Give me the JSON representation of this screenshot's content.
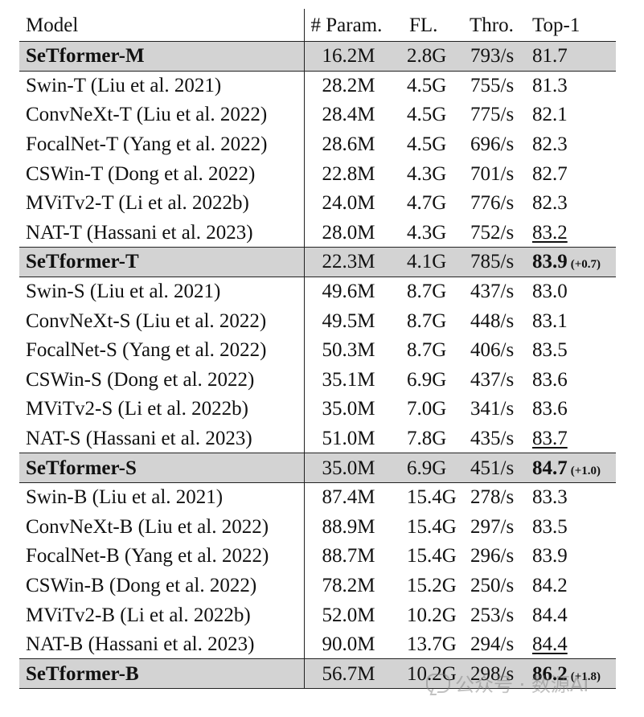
{
  "table": {
    "headers": {
      "model": "Model",
      "param": "# Param.",
      "fl": "FL.",
      "thro": "Thro.",
      "top1": "Top-1"
    },
    "rows": [
      {
        "model": "SeTformer-M",
        "param": "16.2M",
        "fl": "2.8G",
        "thro": "793/s",
        "top1": "81.7",
        "gain": "",
        "highlight": true,
        "best": false,
        "underline": false
      },
      {
        "model": "Swin-T (Liu et al. 2021)",
        "param": "28.2M",
        "fl": "4.5G",
        "thro": "755/s",
        "top1": "81.3",
        "gain": "",
        "highlight": false,
        "best": false,
        "underline": false
      },
      {
        "model": "ConvNeXt-T (Liu et al. 2022)",
        "param": "28.4M",
        "fl": "4.5G",
        "thro": "775/s",
        "top1": "82.1",
        "gain": "",
        "highlight": false,
        "best": false,
        "underline": false
      },
      {
        "model": "FocalNet-T (Yang et al. 2022)",
        "param": "28.6M",
        "fl": "4.5G",
        "thro": "696/s",
        "top1": "82.3",
        "gain": "",
        "highlight": false,
        "best": false,
        "underline": false
      },
      {
        "model": "CSWin-T (Dong et al. 2022)",
        "param": "22.8M",
        "fl": "4.3G",
        "thro": "701/s",
        "top1": "82.7",
        "gain": "",
        "highlight": false,
        "best": false,
        "underline": false
      },
      {
        "model": "MViTv2-T (Li et al. 2022b)",
        "param": "24.0M",
        "fl": "4.7G",
        "thro": "776/s",
        "top1": "82.3",
        "gain": "",
        "highlight": false,
        "best": false,
        "underline": false
      },
      {
        "model": "NAT-T (Hassani et al. 2023)",
        "param": "28.0M",
        "fl": "4.3G",
        "thro": "752/s",
        "top1": "83.2",
        "gain": "",
        "highlight": false,
        "best": false,
        "underline": true
      },
      {
        "model": "SeTformer-T",
        "param": "22.3M",
        "fl": "4.1G",
        "thro": "785/s",
        "top1": "83.9",
        "gain": "(+0.7)",
        "highlight": true,
        "best": true,
        "underline": false
      },
      {
        "model": "Swin-S (Liu et al. 2021)",
        "param": "49.6M",
        "fl": "8.7G",
        "thro": "437/s",
        "top1": "83.0",
        "gain": "",
        "highlight": false,
        "best": false,
        "underline": false
      },
      {
        "model": "ConvNeXt-S (Liu et al. 2022)",
        "param": "49.5M",
        "fl": "8.7G",
        "thro": "448/s",
        "top1": "83.1",
        "gain": "",
        "highlight": false,
        "best": false,
        "underline": false
      },
      {
        "model": "FocalNet-S (Yang et al. 2022)",
        "param": "50.3M",
        "fl": "8.7G",
        "thro": "406/s",
        "top1": "83.5",
        "gain": "",
        "highlight": false,
        "best": false,
        "underline": false
      },
      {
        "model": "CSWin-S (Dong et al. 2022)",
        "param": "35.1M",
        "fl": "6.9G",
        "thro": "437/s",
        "top1": "83.6",
        "gain": "",
        "highlight": false,
        "best": false,
        "underline": false
      },
      {
        "model": "MViTv2-S (Li et al. 2022b)",
        "param": "35.0M",
        "fl": "7.0G",
        "thro": "341/s",
        "top1": "83.6",
        "gain": "",
        "highlight": false,
        "best": false,
        "underline": false
      },
      {
        "model": "NAT-S (Hassani et al. 2023)",
        "param": "51.0M",
        "fl": "7.8G",
        "thro": "435/s",
        "top1": "83.7",
        "gain": "",
        "highlight": false,
        "best": false,
        "underline": true
      },
      {
        "model": "SeTformer-S",
        "param": "35.0M",
        "fl": "6.9G",
        "thro": "451/s",
        "top1": "84.7",
        "gain": "(+1.0)",
        "highlight": true,
        "best": true,
        "underline": false
      },
      {
        "model": "Swin-B (Liu et al. 2021)",
        "param": "87.4M",
        "fl": "15.4G",
        "thro": "278/s",
        "top1": "83.3",
        "gain": "",
        "highlight": false,
        "best": false,
        "underline": false
      },
      {
        "model": "ConvNeXt-B (Liu et al. 2022)",
        "param": "88.9M",
        "fl": "15.4G",
        "thro": "297/s",
        "top1": "83.5",
        "gain": "",
        "highlight": false,
        "best": false,
        "underline": false
      },
      {
        "model": "FocalNet-B (Yang et al. 2022)",
        "param": "88.7M",
        "fl": "15.4G",
        "thro": "296/s",
        "top1": "83.9",
        "gain": "",
        "highlight": false,
        "best": false,
        "underline": false
      },
      {
        "model": "CSWin-B (Dong et al. 2022)",
        "param": "78.2M",
        "fl": "15.2G",
        "thro": "250/s",
        "top1": "84.2",
        "gain": "",
        "highlight": false,
        "best": false,
        "underline": false
      },
      {
        "model": "MViTv2-B (Li et al. 2022b)",
        "param": "52.0M",
        "fl": "10.2G",
        "thro": "253/s",
        "top1": "84.4",
        "gain": "",
        "highlight": false,
        "best": false,
        "underline": false
      },
      {
        "model": "NAT-B (Hassani et al. 2023)",
        "param": "90.0M",
        "fl": "13.7G",
        "thro": "294/s",
        "top1": "84.4",
        "gain": "",
        "highlight": false,
        "best": false,
        "underline": true
      },
      {
        "model": "SeTformer-B",
        "param": "56.7M",
        "fl": "10.2G",
        "thro": "298/s",
        "top1": "86.2",
        "gain": "(+1.8)",
        "highlight": true,
        "best": true,
        "underline": false
      }
    ]
  },
  "watermark": {
    "text": "公众号 · 数源AI",
    "icon": "wechat-icon"
  }
}
